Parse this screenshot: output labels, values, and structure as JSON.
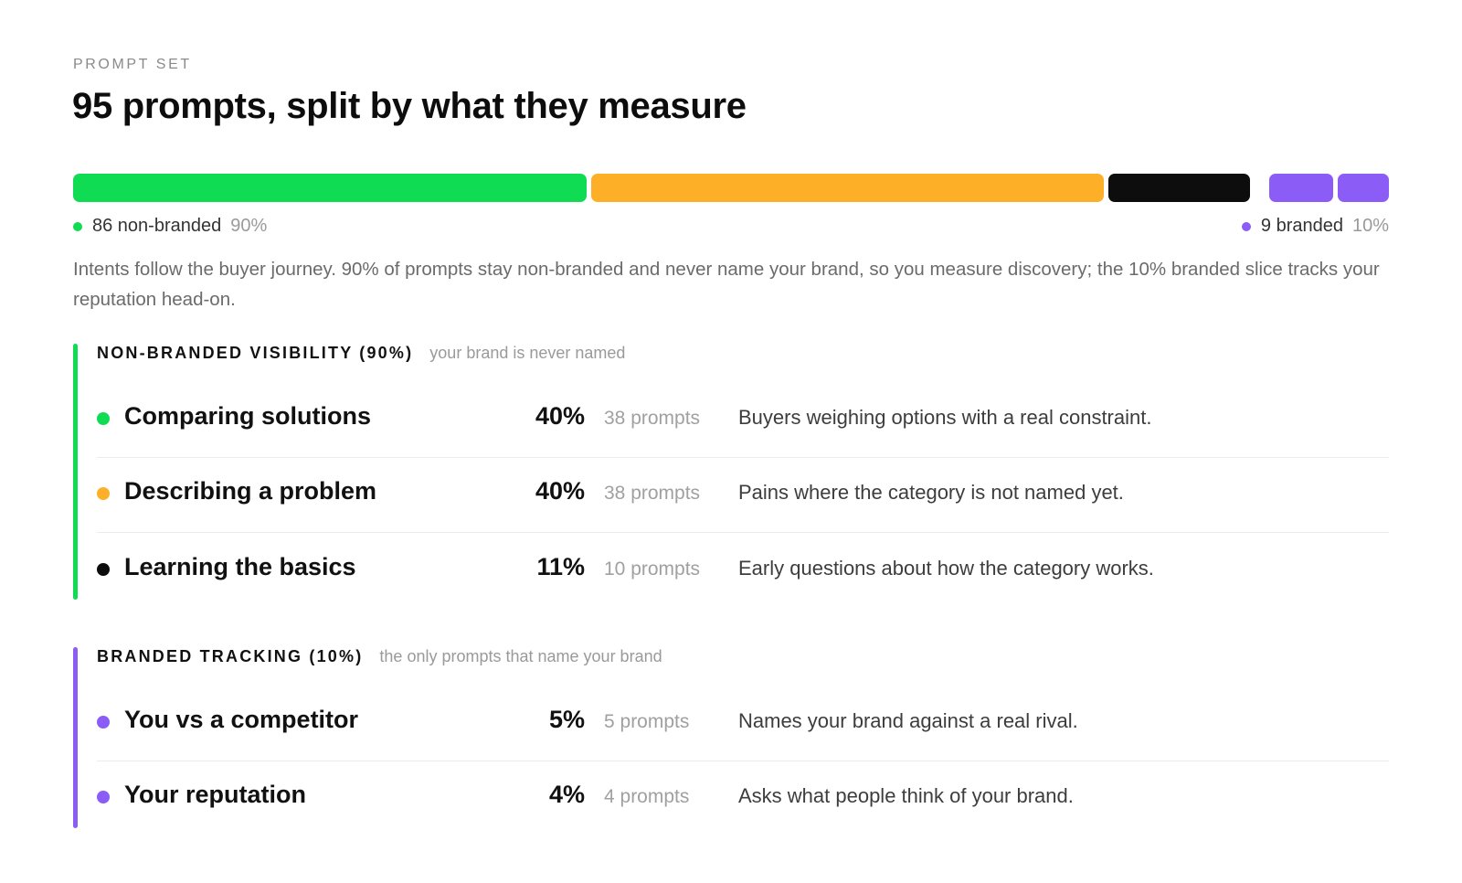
{
  "header": {
    "eyebrow": "PROMPT SET",
    "title": "95 prompts, split by what they measure"
  },
  "distribution_bar": {
    "segments": [
      {
        "label": "Comparing solutions",
        "share": 0.4,
        "color": "#0fdc52"
      },
      {
        "label": "Describing a problem",
        "share": 0.4,
        "color": "#fdb027"
      },
      {
        "label": "Learning the basics",
        "share": 0.11,
        "color": "#0d0d0d"
      },
      {
        "label": "You vs a competitor",
        "share": 0.05,
        "color": "#8b5cf6"
      },
      {
        "label": "Your reputation",
        "share": 0.04,
        "color": "#8b5cf6"
      }
    ]
  },
  "legend": {
    "non_branded": {
      "label": "86 non-branded",
      "pct": "90%",
      "color": "#0fdc52"
    },
    "branded": {
      "label": "9 branded",
      "pct": "10%",
      "color": "#8b5cf6"
    }
  },
  "intro": "Intents follow the buyer journey. 90% of prompts stay non-branded and never name your brand, so you measure discovery; the 10% branded slice tracks your reputation head-on.",
  "sections": [
    {
      "title": "NON-BRANDED VISIBILITY (90%)",
      "note": "your brand is never named",
      "color": "#0fdc52",
      "rows": [
        {
          "name": "Comparing solutions",
          "pct": "40%",
          "count": "38 prompts",
          "desc": "Buyers weighing options with a real constraint.",
          "color": "#0fdc52"
        },
        {
          "name": "Describing a problem",
          "pct": "40%",
          "count": "38 prompts",
          "desc": "Pains where the category is not named yet.",
          "color": "#fdb027"
        },
        {
          "name": "Learning the basics",
          "pct": "11%",
          "count": "10 prompts",
          "desc": "Early questions about how the category works.",
          "color": "#0d0d0d"
        }
      ]
    },
    {
      "title": "BRANDED TRACKING (10%)",
      "note": "the only prompts that name your brand",
      "color": "#8b5cf6",
      "rows": [
        {
          "name": "You vs a competitor",
          "pct": "5%",
          "count": "5 prompts",
          "desc": "Names your brand against a real rival.",
          "color": "#8b5cf6"
        },
        {
          "name": "Your reputation",
          "pct": "4%",
          "count": "4 prompts",
          "desc": "Asks what people think of your brand.",
          "color": "#8b5cf6"
        }
      ]
    }
  ]
}
